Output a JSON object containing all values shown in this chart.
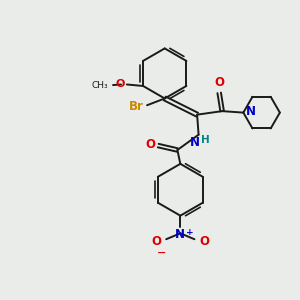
{
  "bg_color": "#eaece9",
  "bond_color": "#1a1a1a",
  "colors": {
    "O": "#dd0000",
    "N": "#0000cc",
    "Br": "#cc8800",
    "N_pip": "#0000cc",
    "H": "#008888"
  },
  "lw": 1.4
}
